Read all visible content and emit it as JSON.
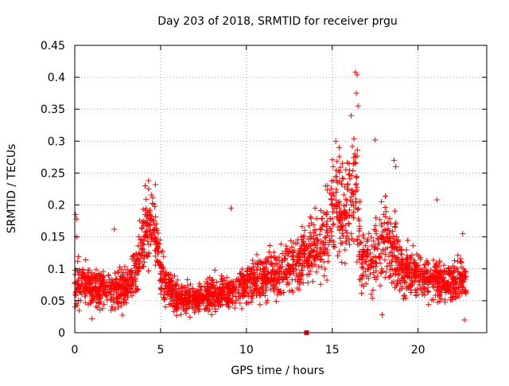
{
  "chart_data": {
    "type": "scatter",
    "title": "Day 203 of 2018, SRMTID for receiver prgu",
    "xlabel": "GPS time / hours",
    "ylabel": "SRMTID / TECUs",
    "xlim": [
      0,
      24
    ],
    "ylim": [
      0,
      0.45
    ],
    "grid": true,
    "marker": "+",
    "color": "#ff0000",
    "x_ticks": [
      0,
      5,
      10,
      15,
      20
    ],
    "x_tick_labels": [
      "0",
      "5",
      "10",
      "15",
      "20"
    ],
    "y_ticks": [
      0,
      0.05,
      0.1,
      0.15,
      0.2,
      0.25,
      0.3,
      0.35,
      0.4,
      0.45
    ],
    "y_tick_labels": [
      "0",
      "0.05",
      "0.1",
      "0.15",
      "0.2",
      "0.25",
      "0.3",
      "0.35",
      "0.4",
      "0.45"
    ],
    "series": [
      {
        "name": "SRMTID",
        "envelope_hours": [
          0,
          0.5,
          1,
          2,
          3,
          3.5,
          4,
          4.3,
          4.6,
          5,
          5.5,
          6,
          6.5,
          7,
          8,
          9,
          10,
          11,
          12,
          13,
          13.5,
          14,
          14.5,
          15,
          15.3,
          15.6,
          16,
          16.3,
          16.6,
          17,
          17.5,
          18,
          18.5,
          19,
          19.5,
          20,
          20.5,
          21,
          21.5,
          22,
          22.5,
          22.8
        ],
        "envelope_median": [
          0.08,
          0.075,
          0.07,
          0.068,
          0.07,
          0.09,
          0.14,
          0.17,
          0.16,
          0.1,
          0.07,
          0.055,
          0.05,
          0.055,
          0.06,
          0.065,
          0.075,
          0.085,
          0.095,
          0.11,
          0.13,
          0.13,
          0.14,
          0.19,
          0.22,
          0.17,
          0.2,
          0.25,
          0.13,
          0.11,
          0.12,
          0.15,
          0.13,
          0.1,
          0.095,
          0.09,
          0.085,
          0.085,
          0.08,
          0.08,
          0.085,
          0.08
        ],
        "envelope_spread": [
          0.035,
          0.03,
          0.028,
          0.026,
          0.028,
          0.035,
          0.045,
          0.05,
          0.045,
          0.035,
          0.025,
          0.022,
          0.02,
          0.02,
          0.022,
          0.025,
          0.03,
          0.03,
          0.032,
          0.035,
          0.045,
          0.045,
          0.05,
          0.06,
          0.07,
          0.06,
          0.07,
          0.08,
          0.05,
          0.045,
          0.05,
          0.055,
          0.05,
          0.038,
          0.035,
          0.032,
          0.03,
          0.03,
          0.03,
          0.03,
          0.03,
          0.03
        ],
        "samples_per_hour": 110,
        "outliers": [
          {
            "x": 0.05,
            "y": 0.185
          },
          {
            "x": 0.1,
            "y": 0.178
          },
          {
            "x": 0.1,
            "y": 0.15
          },
          {
            "x": 2.3,
            "y": 0.162
          },
          {
            "x": 4.1,
            "y": 0.23
          },
          {
            "x": 4.3,
            "y": 0.225
          },
          {
            "x": 4.7,
            "y": 0.232
          },
          {
            "x": 9.1,
            "y": 0.195
          },
          {
            "x": 14.0,
            "y": 0.195
          },
          {
            "x": 15.2,
            "y": 0.3
          },
          {
            "x": 15.4,
            "y": 0.29
          },
          {
            "x": 16.1,
            "y": 0.34
          },
          {
            "x": 16.35,
            "y": 0.408
          },
          {
            "x": 16.45,
            "y": 0.404
          },
          {
            "x": 16.4,
            "y": 0.375
          },
          {
            "x": 16.5,
            "y": 0.355
          },
          {
            "x": 17.5,
            "y": 0.302
          },
          {
            "x": 18.6,
            "y": 0.27
          },
          {
            "x": 18.7,
            "y": 0.26
          },
          {
            "x": 21.1,
            "y": 0.208
          },
          {
            "x": 22.6,
            "y": 0.155
          },
          {
            "x": 22.7,
            "y": 0.02
          },
          {
            "x": 17.9,
            "y": 0.028
          },
          {
            "x": 1.0,
            "y": 0.022
          }
        ]
      }
    ],
    "marker_on_axis": {
      "x": 13.5,
      "y": 0
    }
  }
}
